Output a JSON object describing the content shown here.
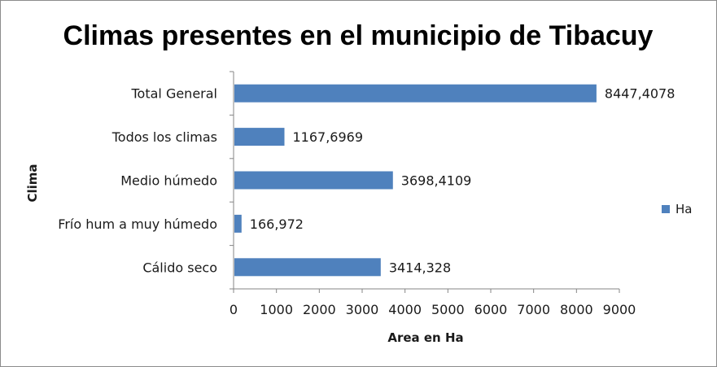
{
  "chart_data": {
    "type": "bar",
    "orientation": "horizontal",
    "title": "Climas presentes en el municipio de Tibacuy",
    "xlabel": "Area en Ha",
    "ylabel": "Clima",
    "categories": [
      "Cálido seco",
      "Frío hum a muy húmedo",
      "Medio húmedo",
      "Todos los  climas",
      "Total General"
    ],
    "series": [
      {
        "name": "Ha",
        "color": "#4F81BD",
        "values": [
          3414.328,
          166.972,
          3698.4109,
          1167.6969,
          8447.4078
        ],
        "labels": [
          "3414,328",
          "166,972",
          "3698,4109",
          "1167,6969",
          "8447,4078"
        ]
      }
    ],
    "xlim": [
      0,
      9000
    ],
    "xticks": [
      "0",
      "1000",
      "2000",
      "3000",
      "4000",
      "5000",
      "6000",
      "7000",
      "8000",
      "9000"
    ],
    "grid": false,
    "legend_position": "right"
  }
}
